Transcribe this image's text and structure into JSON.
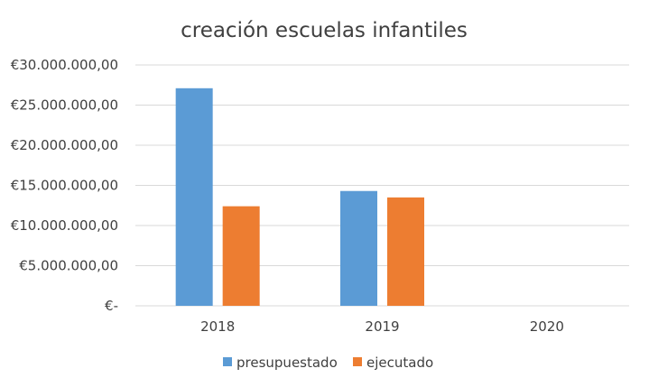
{
  "chart_data": {
    "type": "bar",
    "title": "creación escuelas infantiles",
    "categories": [
      "2018",
      "2019",
      "2020"
    ],
    "series": [
      {
        "name": "presupuestado",
        "color": "#5B9BD5",
        "values": [
          27100000,
          14300000,
          0
        ]
      },
      {
        "name": "ejecutado",
        "color": "#ED7D31",
        "values": [
          12400000,
          13500000,
          0
        ]
      }
    ],
    "ylim": [
      0,
      30000000
    ],
    "yticks": [
      {
        "value": 0,
        "label": "€-"
      },
      {
        "value": 5000000,
        "label": "€5.000.000,00"
      },
      {
        "value": 10000000,
        "label": "€10.000.000,00"
      },
      {
        "value": 15000000,
        "label": "€15.000.000,00"
      },
      {
        "value": 20000000,
        "label": "€20.000.000,00"
      },
      {
        "value": 25000000,
        "label": "€25.000.000,00"
      },
      {
        "value": 30000000,
        "label": "€30.000.000,00"
      }
    ],
    "grid": true,
    "gridColor": "#D9D9D9",
    "legend": "bottom-center"
  }
}
